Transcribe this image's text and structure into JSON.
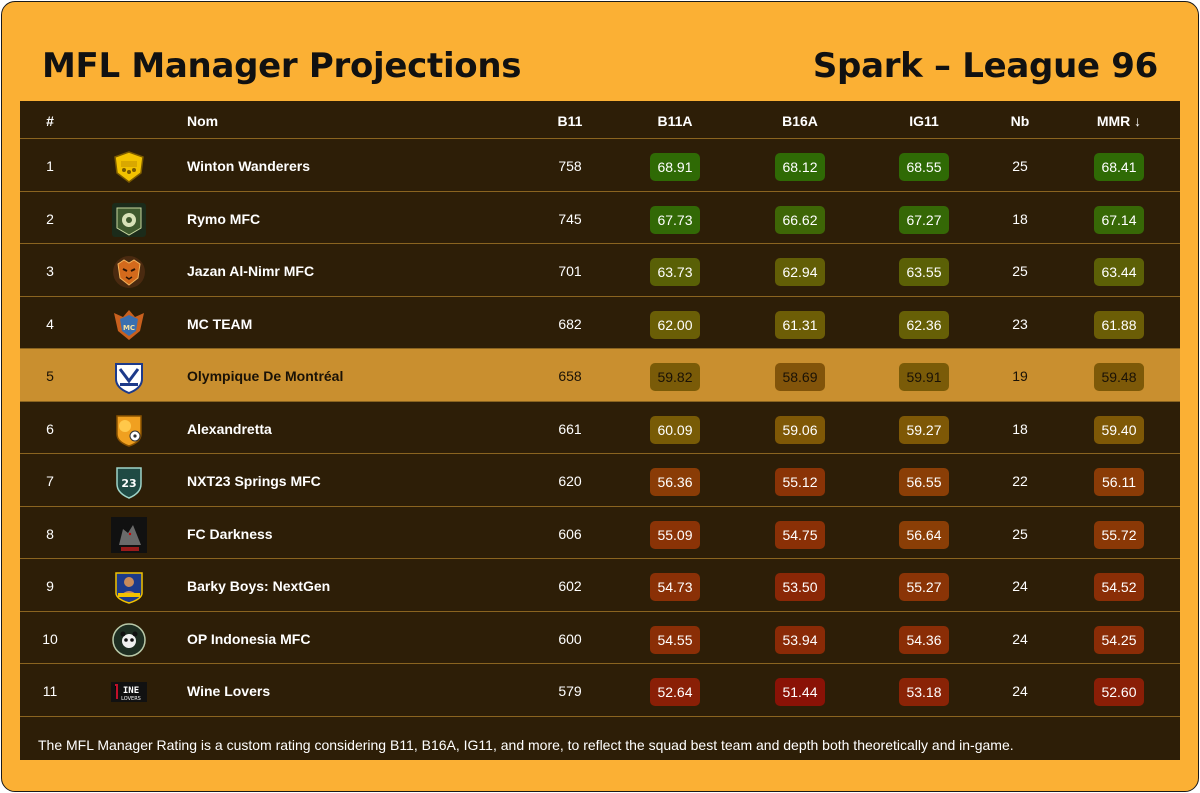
{
  "header": {
    "title": "MFL Manager Projections",
    "league": "Spark – League 96"
  },
  "table": {
    "columns": {
      "rank": "#",
      "name": "Nom",
      "b11": "B11",
      "b11a": "B11A",
      "b16a": "B16A",
      "ig11": "IG11",
      "nb": "Nb",
      "mmr": "MMR ↓"
    },
    "highlight_row": 5,
    "rows": [
      {
        "rank": "1",
        "logo": "shield-icon",
        "name": "Winton Wanderers",
        "b11": "758",
        "b11a": "68.91",
        "b16a": "68.12",
        "ig11": "68.55",
        "nb": "25",
        "mmr": "68.41",
        "c_b11a": "#2f6a05",
        "c_b16a": "#2f6a05",
        "c_ig11": "#2f6a05",
        "c_mmr": "#2f6a05"
      },
      {
        "rank": "2",
        "logo": "badge-icon",
        "name": "Rymo MFC",
        "b11": "745",
        "b11a": "67.73",
        "b16a": "66.62",
        "ig11": "67.27",
        "nb": "18",
        "mmr": "67.14",
        "c_b11a": "#326906",
        "c_b16a": "#3e6606",
        "c_ig11": "#356806",
        "c_mmr": "#376806"
      },
      {
        "rank": "3",
        "logo": "tiger-icon",
        "name": "Jazan Al-Nimr MFC",
        "b11": "701",
        "b11a": "63.73",
        "b16a": "62.94",
        "ig11": "63.55",
        "nb": "25",
        "mmr": "63.44",
        "c_b11a": "#596006",
        "c_b16a": "#625e06",
        "c_ig11": "#5b6006",
        "c_mmr": "#5c6006"
      },
      {
        "rank": "4",
        "logo": "team-icon",
        "name": "MC TEAM",
        "b11": "682",
        "b11a": "62.00",
        "b16a": "61.31",
        "ig11": "62.36",
        "nb": "23",
        "mmr": "61.88",
        "c_b11a": "#6a5e06",
        "c_b16a": "#6d5d06",
        "c_ig11": "#665f06",
        "c_mmr": "#6b5d06"
      },
      {
        "rank": "5",
        "logo": "crest-icon",
        "name": "Olympique De Montréal",
        "b11": "658",
        "b11a": "59.82",
        "b16a": "58.69",
        "ig11": "59.91",
        "nb": "19",
        "mmr": "59.48",
        "c_b11a": "#7a5b08",
        "c_b16a": "#82540a",
        "c_ig11": "#7a5b08",
        "c_mmr": "#7d5908"
      },
      {
        "rank": "6",
        "logo": "lion-icon",
        "name": "Alexandretta",
        "b11": "661",
        "b11a": "60.09",
        "b16a": "59.06",
        "ig11": "59.27",
        "nb": "18",
        "mmr": "59.40",
        "c_b11a": "#785b06",
        "c_b16a": "#7f5806",
        "c_ig11": "#7e5806",
        "c_mmr": "#7e5806"
      },
      {
        "rank": "7",
        "logo": "springs-icon",
        "name": "NXT23 Springs MFC",
        "b11": "620",
        "b11a": "56.36",
        "b16a": "55.12",
        "ig11": "56.55",
        "nb": "22",
        "mmr": "56.11",
        "c_b11a": "#8a3c06",
        "c_b16a": "#8a3306",
        "c_ig11": "#8a3e06",
        "c_mmr": "#8a3b06"
      },
      {
        "rank": "8",
        "logo": "wolf-icon",
        "name": "FC Darkness",
        "b11": "606",
        "b11a": "55.09",
        "b16a": "54.75",
        "ig11": "56.64",
        "nb": "25",
        "mmr": "55.72",
        "c_b11a": "#8a3306",
        "c_b16a": "#8a3006",
        "c_ig11": "#8a3e06",
        "c_mmr": "#8a3806"
      },
      {
        "rank": "9",
        "logo": "player-icon",
        "name": "Barky Boys: NextGen",
        "b11": "602",
        "b11a": "54.73",
        "b16a": "53.50",
        "ig11": "55.27",
        "nb": "24",
        "mmr": "54.52",
        "c_b11a": "#8a3006",
        "c_b16a": "#8a2706",
        "c_ig11": "#8a3406",
        "c_mmr": "#8a2e06"
      },
      {
        "rank": "10",
        "logo": "panda-icon",
        "name": "OP Indonesia MFC",
        "b11": "600",
        "b11a": "54.55",
        "b16a": "53.94",
        "ig11": "54.36",
        "nb": "24",
        "mmr": "54.25",
        "c_b11a": "#8a2e06",
        "c_b16a": "#8a2a06",
        "c_ig11": "#8a2d06",
        "c_mmr": "#8a2c06"
      },
      {
        "rank": "11",
        "logo": "wine-icon",
        "name": "Wine Lovers",
        "b11": "579",
        "b11a": "52.64",
        "b16a": "51.44",
        "ig11": "53.18",
        "nb": "24",
        "mmr": "52.60",
        "c_b11a": "#8a1f06",
        "c_b16a": "#8a1206",
        "c_ig11": "#8a2306",
        "c_mmr": "#8a1e06"
      }
    ]
  },
  "footer": {
    "note": "The MFL Manager Rating is a custom rating considering B11, B16A, IG11, and more, to reflect the squad best team and depth both theoretically and in-game."
  }
}
